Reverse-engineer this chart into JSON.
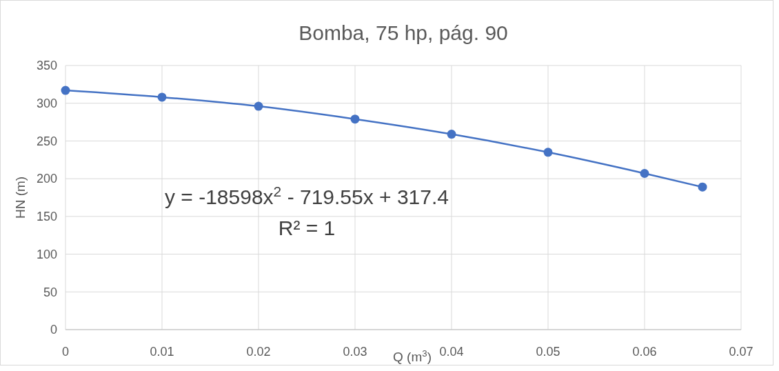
{
  "chart_data": {
    "type": "line",
    "title": "Bomba, 75 hp, pág. 90",
    "xlabel": "Q (m$^{3}$)",
    "ylabel": "HN (m)",
    "x": [
      0,
      0.01,
      0.02,
      0.03,
      0.04,
      0.05,
      0.06,
      0.066
    ],
    "series": [
      {
        "color": "#4472c4",
        "values": [
          317,
          308,
          296,
          279,
          259,
          235,
          207,
          189
        ]
      }
    ],
    "xlim": [
      0,
      0.07
    ],
    "xticks": [
      0,
      0.01,
      0.02,
      0.03,
      0.04,
      0.05,
      0.06,
      0.07
    ],
    "ylim": [
      0,
      350
    ],
    "yticks": [
      0,
      50,
      100,
      150,
      200,
      250,
      300,
      350
    ],
    "grid": true,
    "marker": "circle",
    "annotations": [
      "y = -18598x$^{2}$ - 719.55x + 317.4",
      "R² = 1"
    ]
  }
}
